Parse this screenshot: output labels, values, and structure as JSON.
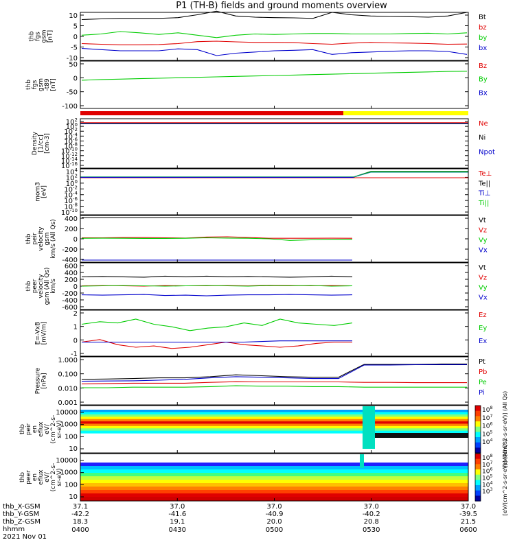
{
  "title": "P1 (TH-B) fields and ground moments overview",
  "colors": {
    "black": "#000000",
    "red": "#e00000",
    "green": "#00cc00",
    "blue": "#0000cc",
    "yellow": "#ffff00",
    "dark_green": "#008000",
    "teal": "#009090"
  },
  "chart_data": [
    {
      "panel": "fgs_gsm",
      "type": "line",
      "ylabel": "thb\nfgs\ngsm\n[nT]",
      "ylim": [
        -10,
        10
      ],
      "yticks": [
        "10",
        "5",
        "0",
        "-5",
        "-10"
      ],
      "legend": [
        "Bt",
        "bz",
        "by",
        "bx"
      ],
      "series": [
        {
          "name": "Bt",
          "color": "black",
          "values": [
            7,
            7.3,
            7.5,
            7.5,
            7.5,
            7.8,
            9,
            10.5,
            8.5,
            8,
            7.8,
            7.7,
            7.5,
            10,
            9,
            8.5,
            8.3,
            8.2,
            8,
            8.5,
            10
          ]
        },
        {
          "name": "bz",
          "color": "red",
          "values": [
            -3,
            -3.3,
            -3.5,
            -3.5,
            -3.4,
            -3,
            -2.2,
            -2,
            -2.3,
            -2.5,
            -2.5,
            -2.6,
            -3,
            -3.3,
            -2.8,
            -2.5,
            -2.7,
            -2.8,
            -3,
            -3.3,
            -3.2
          ]
        },
        {
          "name": "by",
          "color": "green",
          "values": [
            0.5,
            1,
            2,
            1.5,
            0.8,
            1.5,
            0.5,
            -0.5,
            0.5,
            1,
            0.8,
            1,
            1.2,
            1.2,
            1,
            1,
            1,
            1.2,
            1.3,
            1,
            1.5
          ]
        },
        {
          "name": "bx",
          "color": "blue",
          "values": [
            -5,
            -5.5,
            -6,
            -6,
            -6,
            -5.2,
            -5.5,
            -8,
            -7,
            -6.5,
            -6,
            -5.8,
            -5.5,
            -7.5,
            -6.8,
            -6.5,
            -6.2,
            -6,
            -6,
            -6.3,
            -7.5
          ]
        }
      ]
    },
    {
      "panel": "fgs_gsm_minus_t89",
      "type": "line",
      "ylabel": "thb\nfgs\ngsm\n-t89\n[nT]",
      "ylim": [
        -130,
        80
      ],
      "yticks": [
        "50",
        "0",
        "-50",
        "-100"
      ],
      "legend": [
        "Bz",
        "By",
        "Bx"
      ],
      "series": [
        {
          "name": "By",
          "color": "green",
          "values": [
            -5,
            -2,
            0,
            2,
            4,
            6,
            8,
            10,
            12,
            14,
            16,
            18,
            20,
            22,
            24,
            26,
            28,
            30,
            32,
            34,
            35
          ]
        }
      ]
    },
    {
      "panel": "density",
      "type": "line",
      "log": true,
      "ylabel": "Density\n[1/cc]\n[cm-3]",
      "ylim_exp": [
        -17,
        2
      ],
      "yticks": [
        "10^2",
        "10^0",
        "10^-2",
        "10^-4",
        "10^-6",
        "10^-8",
        "10^-10",
        "10^-12",
        "10^-14",
        "10^-16"
      ],
      "legend": [
        "Ne",
        "Ni",
        "Npot"
      ]
    },
    {
      "panel": "temperature",
      "type": "line",
      "log": true,
      "ylabel": "mom3\n[eV]",
      "ylim_exp": [
        -11,
        5
      ],
      "yticks": [
        "10^4",
        "10^2",
        "10^0",
        "10^-2",
        "10^-4",
        "10^-6",
        "10^-8",
        "10^-10"
      ],
      "legend": [
        "Te⊥",
        "Te||",
        "Ti⊥",
        "Ti||"
      ]
    },
    {
      "panel": "peir_velocity",
      "type": "line",
      "ylabel": "thb\npeir\nvelocity\ngsm\nkm/s (All Qs)",
      "ylim": [
        -450,
        450
      ],
      "yticks": [
        "400",
        "200",
        "0",
        "-200",
        "-400"
      ],
      "legend": [
        "Vt",
        "Vz",
        "Vy",
        "Vx"
      ],
      "series": [
        {
          "name": "Vt",
          "color": "black",
          "values": [
            410,
            410,
            410,
            410,
            410,
            410,
            410,
            410,
            410,
            410,
            410,
            410,
            410,
            410
          ]
        },
        {
          "name": "Vz",
          "color": "red",
          "values": [
            20,
            20,
            25,
            25,
            20,
            15,
            35,
            40,
            25,
            10,
            10,
            10,
            12,
            10
          ]
        },
        {
          "name": "Vy",
          "color": "green",
          "values": [
            10,
            12,
            10,
            8,
            8,
            10,
            20,
            15,
            10,
            0,
            -30,
            -20,
            -10,
            -10
          ]
        },
        {
          "name": "Vx",
          "color": "blue",
          "values": [
            -410,
            -410,
            -410,
            -410,
            -410,
            -410,
            -410,
            -410,
            -410,
            -410,
            -410,
            -410,
            -410,
            -410
          ]
        }
      ]
    },
    {
      "panel": "peer_velocity",
      "type": "line",
      "ylabel": "thb\npeer\nvelocity\ngsm (All Qs)\nkm/s",
      "ylim": [
        -700,
        700
      ],
      "yticks": [
        "600",
        "400",
        "200",
        "0",
        "-200",
        "-400",
        "-600"
      ],
      "legend": [
        "Vt",
        "Vz",
        "Vy",
        "Vx"
      ],
      "series": [
        {
          "name": "Vt",
          "color": "black",
          "values": [
            280,
            290,
            280,
            270,
            300,
            280,
            300,
            280,
            290,
            280,
            270,
            280,
            300,
            280
          ]
        },
        {
          "name": "Vz",
          "color": "red",
          "values": [
            10,
            20,
            10,
            0,
            20,
            10,
            10,
            20,
            10,
            30,
            20,
            10,
            20,
            10
          ]
        },
        {
          "name": "Vy",
          "color": "green",
          "values": [
            0,
            10,
            20,
            10,
            0,
            10,
            20,
            10,
            0,
            20,
            10,
            20,
            0,
            10
          ]
        },
        {
          "name": "Vx",
          "color": "blue",
          "values": [
            -260,
            -270,
            -260,
            -250,
            -280,
            -270,
            -290,
            -270,
            -260,
            -260,
            -250,
            -260,
            -270,
            -260
          ]
        }
      ]
    },
    {
      "panel": "e_field",
      "type": "line",
      "ylabel": "E=-VxB\n[mV/m]",
      "ylim": [
        -1.1,
        2.5
      ],
      "yticks": [
        "2",
        "1",
        "0",
        "-1"
      ],
      "legend": [
        "Ez",
        "Ey",
        "Ex"
      ],
      "series": [
        {
          "name": "Ez",
          "color": "red",
          "values": [
            0,
            0.2,
            -0.2,
            -0.4,
            -0.3,
            -0.5,
            -0.4,
            -0.2,
            0,
            -0.2,
            -0.3,
            -0.4,
            -0.3,
            -0.1,
            0,
            0
          ]
        },
        {
          "name": "Ey",
          "color": "green",
          "values": [
            1.4,
            1.6,
            1.5,
            1.8,
            1.4,
            1.2,
            0.9,
            1.1,
            1.2,
            1.5,
            1.3,
            1.8,
            1.5,
            1.4,
            1.3,
            1.5
          ]
        },
        {
          "name": "Ex",
          "color": "blue",
          "values": [
            0,
            0,
            0,
            0,
            0,
            0,
            0,
            0,
            0,
            0,
            0.05,
            0.1,
            0.1,
            0.1,
            0.1,
            0.1
          ]
        }
      ]
    },
    {
      "panel": "pressure",
      "type": "line",
      "log": true,
      "ylabel": "Pressure\n[nPa]",
      "ylim_exp": [
        -3.1,
        0.1
      ],
      "yticks": [
        "1.000",
        "0.100",
        "0.010",
        "0.001"
      ],
      "legend": [
        "Pt",
        "Pb",
        "Pe",
        "Pi"
      ],
      "series": [
        {
          "name": "Pt",
          "color": "black",
          "values": [
            0.04,
            0.042,
            0.045,
            0.05,
            0.05,
            0.06,
            0.08,
            0.07,
            0.06,
            0.055,
            0.055,
            0.4,
            0.4,
            0.4,
            0.42,
            0.42
          ]
        },
        {
          "name": "Pb",
          "color": "red",
          "values": [
            0.02,
            0.021,
            0.022,
            0.022,
            0.022,
            0.025,
            0.028,
            0.027,
            0.027,
            0.027,
            0.027,
            0.025,
            0.025,
            0.024,
            0.024,
            0.024
          ]
        },
        {
          "name": "Pe",
          "color": "green",
          "values": [
            0.011,
            0.011,
            0.012,
            0.012,
            0.012,
            0.013,
            0.015,
            0.014,
            0.014,
            0.013,
            0.013,
            0.012,
            0.012,
            0.012,
            0.012,
            0.012
          ]
        },
        {
          "name": "Pi",
          "color": "blue",
          "values": [
            0.03,
            0.031,
            0.032,
            0.035,
            0.04,
            0.05,
            0.06,
            0.055,
            0.05,
            0.045,
            0.045,
            0.36,
            0.36,
            0.38,
            0.38,
            0.38
          ]
        }
      ]
    },
    {
      "panel": "peir_spectrogram",
      "type": "heatmap",
      "ylabel": "thb\npeir\nen\neflux\neV/\n(cm^2-s-\nsr-eV)",
      "ytick_labels": [
        "10000",
        "1000",
        "100",
        "10"
      ],
      "colorbar_labels": [
        "10^8",
        "10^7",
        "10^6",
        "10^5",
        "10^4"
      ],
      "colorbar_title": "[eV/(cm^2-s-sr-eV)] (All Qs)"
    },
    {
      "panel": "peer_spectrogram",
      "type": "heatmap",
      "ylabel": "thb\npeer\nen\neflux\neV/\n(cm^2-s-\nsr-eV)",
      "ytick_labels": [
        "10000",
        "1000",
        "100",
        "10"
      ],
      "colorbar_labels": [
        "10^8",
        "10^7",
        "10^6",
        "10^5",
        "10^4",
        "10^3"
      ],
      "colorbar_title": "[eV/(cm^2-s-sr-eV)] (All Qs)"
    }
  ],
  "xaxis": {
    "row_labels": [
      "thb_X-GSM",
      "thb_Y-GSM",
      "thb_Z-GSM",
      "hhmm",
      "2021 Nov 01"
    ],
    "ticks": [
      {
        "x": "37.1",
        "y": "-42.2",
        "z": "18.3",
        "t": "0400"
      },
      {
        "x": "37.0",
        "y": "-41.6",
        "z": "19.1",
        "t": "0430"
      },
      {
        "x": "37.0",
        "y": "-40.9",
        "z": "20.0",
        "t": "0500"
      },
      {
        "x": "37.0",
        "y": "-40.2",
        "z": "20.8",
        "t": "0530"
      },
      {
        "x": "37.0",
        "y": "-39.5",
        "z": "21.5",
        "t": "0600"
      }
    ]
  }
}
